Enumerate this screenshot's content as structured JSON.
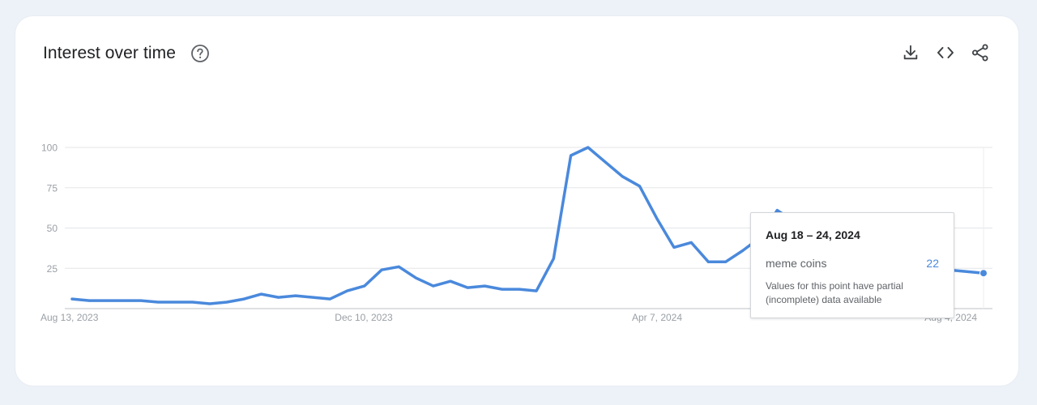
{
  "header": {
    "title": "Interest over time",
    "help_icon": "help-circle-icon",
    "actions": [
      {
        "name": "download-button",
        "icon": "download-icon"
      },
      {
        "name": "embed-button",
        "icon": "code-icon"
      },
      {
        "name": "share-button",
        "icon": "share-icon"
      }
    ]
  },
  "colors": {
    "line": "#4a89dc",
    "grid": "#e4e6e9",
    "axis_text": "#9aa0a6"
  },
  "tooltip": {
    "date": "Aug 18 – 24, 2024",
    "term": "meme coins",
    "value": "22",
    "note": "Values for this point have partial (incomplete) data available"
  },
  "chart_data": {
    "type": "line",
    "title": "",
    "xlabel": "",
    "ylabel": "",
    "ylim": [
      0,
      100
    ],
    "y_ticks": [
      "25",
      "50",
      "75",
      "100"
    ],
    "x_tick_labels": [
      "Aug 13, 2023",
      "Dec 10, 2023",
      "Apr 7, 2024",
      "Aug 4, 2024"
    ],
    "grid": true,
    "series": [
      {
        "name": "meme coins",
        "x": [
          "2023-08-13",
          "2023-08-20",
          "2023-08-27",
          "2023-09-03",
          "2023-09-10",
          "2023-09-17",
          "2023-09-24",
          "2023-10-01",
          "2023-10-08",
          "2023-10-15",
          "2023-10-22",
          "2023-10-29",
          "2023-11-05",
          "2023-11-12",
          "2023-11-19",
          "2023-11-26",
          "2023-12-03",
          "2023-12-10",
          "2023-12-17",
          "2023-12-24",
          "2023-12-31",
          "2024-01-07",
          "2024-01-14",
          "2024-01-21",
          "2024-01-28",
          "2024-02-04",
          "2024-02-11",
          "2024-02-18",
          "2024-02-25",
          "2024-03-03",
          "2024-03-10",
          "2024-03-17",
          "2024-03-24",
          "2024-03-31",
          "2024-04-07",
          "2024-04-14",
          "2024-04-21",
          "2024-04-28",
          "2024-05-05",
          "2024-05-12",
          "2024-05-19",
          "2024-05-26",
          "2024-06-02",
          "2024-06-09",
          "2024-06-16",
          "2024-06-23",
          "2024-06-30",
          "2024-07-07",
          "2024-07-14",
          "2024-07-21",
          "2024-07-28",
          "2024-08-04",
          "2024-08-11",
          "2024-08-18"
        ],
        "values": [
          6,
          5,
          5,
          5,
          5,
          4,
          4,
          4,
          3,
          4,
          6,
          9,
          7,
          8,
          7,
          6,
          11,
          14,
          24,
          26,
          19,
          14,
          17,
          13,
          14,
          12,
          12,
          11,
          31,
          95,
          100,
          91,
          82,
          76,
          56,
          38,
          41,
          29,
          29,
          36,
          44,
          61,
          54,
          47,
          36,
          29,
          29,
          26,
          28,
          28,
          24,
          24,
          23,
          22
        ]
      }
    ]
  }
}
